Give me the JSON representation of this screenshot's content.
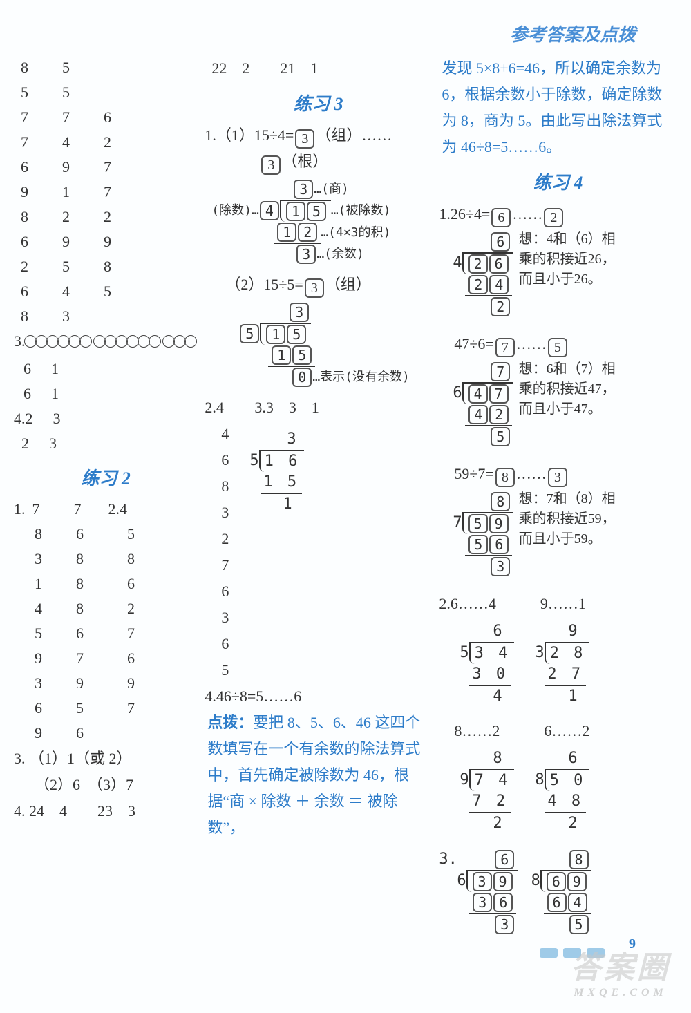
{
  "header_title": "参考答案及点拨",
  "page_number": "9",
  "watermark": {
    "main": "答案圈",
    "sub": "MXQE.COM"
  },
  "col1": {
    "grid_top": [
      [
        "8",
        "5"
      ],
      [
        "5",
        "5"
      ],
      [
        "7",
        "7",
        "6"
      ],
      [
        "7",
        "4",
        "2"
      ],
      [
        "6",
        "9",
        "7"
      ],
      [
        "9",
        "1",
        "7"
      ],
      [
        "8",
        "2",
        "2"
      ],
      [
        "6",
        "9",
        "9"
      ],
      [
        "2",
        "5",
        "8"
      ],
      [
        "6",
        "4",
        "5"
      ],
      [
        "8",
        "3",
        ""
      ]
    ],
    "q3_label": "3.",
    "q3_circle_groups": [
      6,
      6,
      3
    ],
    "q3_rows": [
      [
        "6",
        "1"
      ],
      [
        "6",
        "1"
      ]
    ],
    "q4_label": "4.",
    "q4_rows": [
      [
        "2",
        "3"
      ],
      [
        "2",
        "3"
      ]
    ],
    "section2_title": "练习 2",
    "s2_q1": {
      "label": "1.",
      "left_first": "7",
      "left": [
        "8",
        "3",
        "1",
        "4",
        "5",
        "9",
        "3",
        "6",
        "9"
      ],
      "mid_first": "7",
      "mid": [
        "6",
        "8",
        "8",
        "8",
        "6",
        "7",
        "9",
        "5",
        "6"
      ],
      "right_first_label": "2.",
      "right_first": "4",
      "right": [
        "5",
        "8",
        "6",
        "2",
        "7",
        "6",
        "9",
        "7",
        ""
      ]
    },
    "s2_q3": {
      "label": "3.",
      "lines": [
        "（1）1（或 2）",
        "（2）6　（3）7"
      ]
    },
    "s2_q4": {
      "label": "4.",
      "text": "24　4　　23　3"
    }
  },
  "col2": {
    "top_row": "22　2　　21　1",
    "section3_title": "练习 3",
    "q1a_label": "1.（1）",
    "q1a_eq_pre": "15÷4=",
    "q1a_box1": "3",
    "q1a_eq_post": "（组）……",
    "q1a_box2": "3",
    "q1a_under": "（根）",
    "ld1": {
      "divisor_label": "(除数)…",
      "divisor_box": "4",
      "dividend_d1": "1",
      "dividend_d2": "5",
      "dividend_label": "…(被除数)",
      "quot_box": "3",
      "quot_label": "…(商)",
      "prod_d1": "1",
      "prod_d2": "2",
      "prod_label": "…(4×3的积)",
      "rem_box": "3",
      "rem_label": "…(余数)"
    },
    "q1b_label": "（2）",
    "q1b_eq_pre": "15÷5=",
    "q1b_box": "3",
    "q1b_eq_post": "（组）",
    "ld2": {
      "divisor": "5",
      "dividend_d1": "1",
      "dividend_d2": "5",
      "quot": "3",
      "prod_d1": "1",
      "prod_d2": "5",
      "rem": "0",
      "rem_label": "…表示(没有余数)"
    },
    "q2": {
      "label": "2.",
      "a": "4",
      "b_label": "3.",
      "b": "3　3　1"
    },
    "q2_left_list": [
      "4",
      "6",
      "8",
      "3",
      "2",
      "7",
      "6",
      "3",
      "6",
      "5"
    ],
    "q2_ld": {
      "divisor": "5",
      "dividend": "1 6",
      "quot": "3",
      "prod": "1 5",
      "rem": "1"
    },
    "q4": {
      "label": "4.",
      "eq": "46÷8=5……6"
    },
    "dianbo_label": "点拨：",
    "dianbo_text": "要把 8、5、6、46 这四个数填写在一个有余数的除法算式中，首先确定被除数为 46，根据“商 × 除数 ＋ 余数 ＝ 被除数”，"
  },
  "col3": {
    "continue_text": "发现 5×8+6=46，所以确定余数为 6，根据余数小于除数，确定除数为 8，商为 5。由此写出除法算式为 46÷8=5……6。",
    "section4_title": "练习 4",
    "q1": {
      "label": "1.",
      "items": [
        {
          "eq_pre": "26÷4=",
          "q_box": "6",
          "r_box": "2",
          "divisor": "4",
          "quot": "6",
          "dividend_d1": "2",
          "dividend_d2": "6",
          "prod_d1": "2",
          "prod_d2": "4",
          "rem": "2",
          "think1": "想：4和（6）相",
          "think2": "乘的积接近26，",
          "think3": "而且小于26。"
        },
        {
          "eq_pre": "47÷6=",
          "q_box": "7",
          "r_box": "5",
          "divisor": "6",
          "quot": "7",
          "dividend_d1": "4",
          "dividend_d2": "7",
          "prod_d1": "4",
          "prod_d2": "2",
          "rem": "5",
          "think1": "想：6和（7）相",
          "think2": "乘的积接近47，",
          "think3": "而且小于47。"
        },
        {
          "eq_pre": "59÷7=",
          "q_box": "8",
          "r_box": "3",
          "divisor": "7",
          "quot": "8",
          "dividend_d1": "5",
          "dividend_d2": "9",
          "prod_d1": "5",
          "prod_d2": "6",
          "rem": "3",
          "think1": "想：7和（8）相",
          "think2": "乘的积接近59，",
          "think3": "而且小于59。"
        }
      ]
    },
    "q2": {
      "label": "2.",
      "sets": [
        {
          "top": "6……4",
          "divisor": "5",
          "dividend": "3 4",
          "quot": "6",
          "prod": "3 0",
          "rem": "4"
        },
        {
          "top": "9……1",
          "divisor": "3",
          "dividend": "2 8",
          "quot": "9",
          "prod": "2 7",
          "rem": "1"
        },
        {
          "top": "8……2",
          "divisor": "9",
          "dividend": "7 4",
          "quot": "8",
          "prod": "7 2",
          "rem": "2"
        },
        {
          "top": "6……2",
          "divisor": "8",
          "dividend": "5 0",
          "quot": "6",
          "prod": "4 8",
          "rem": "2"
        }
      ]
    },
    "q3": {
      "label": "3.",
      "items": [
        {
          "divisor": "6",
          "dividend_d1": "3",
          "dividend_d2": "9",
          "quot": "6",
          "prod_d1": "3",
          "prod_d2": "6",
          "rem": "3"
        },
        {
          "divisor": "8",
          "dividend_d1": "6",
          "dividend_d2": "9",
          "quot": "8",
          "prod_d1": "6",
          "prod_d2": "4",
          "rem": "5"
        }
      ]
    }
  }
}
